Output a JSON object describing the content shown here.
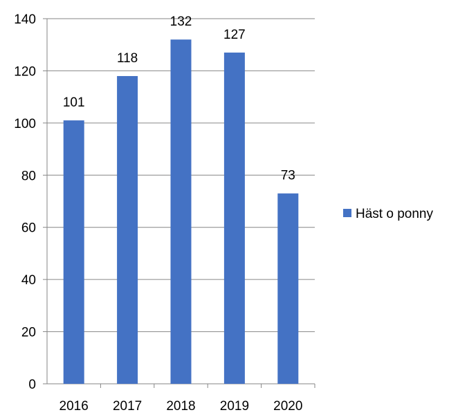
{
  "chart_data": {
    "type": "bar",
    "title": "",
    "xlabel": "",
    "ylabel": "",
    "categories": [
      "2016",
      "2017",
      "2018",
      "2019",
      "2020"
    ],
    "series": [
      {
        "name": "Häst o ponny",
        "values": [
          101,
          118,
          132,
          127,
          73
        ],
        "color": "#4472C4"
      }
    ],
    "ylim": [
      0,
      140
    ],
    "yticks": [
      0,
      20,
      40,
      60,
      80,
      100,
      120,
      140
    ],
    "grid": true,
    "legend_position": "right",
    "data_labels": true
  }
}
